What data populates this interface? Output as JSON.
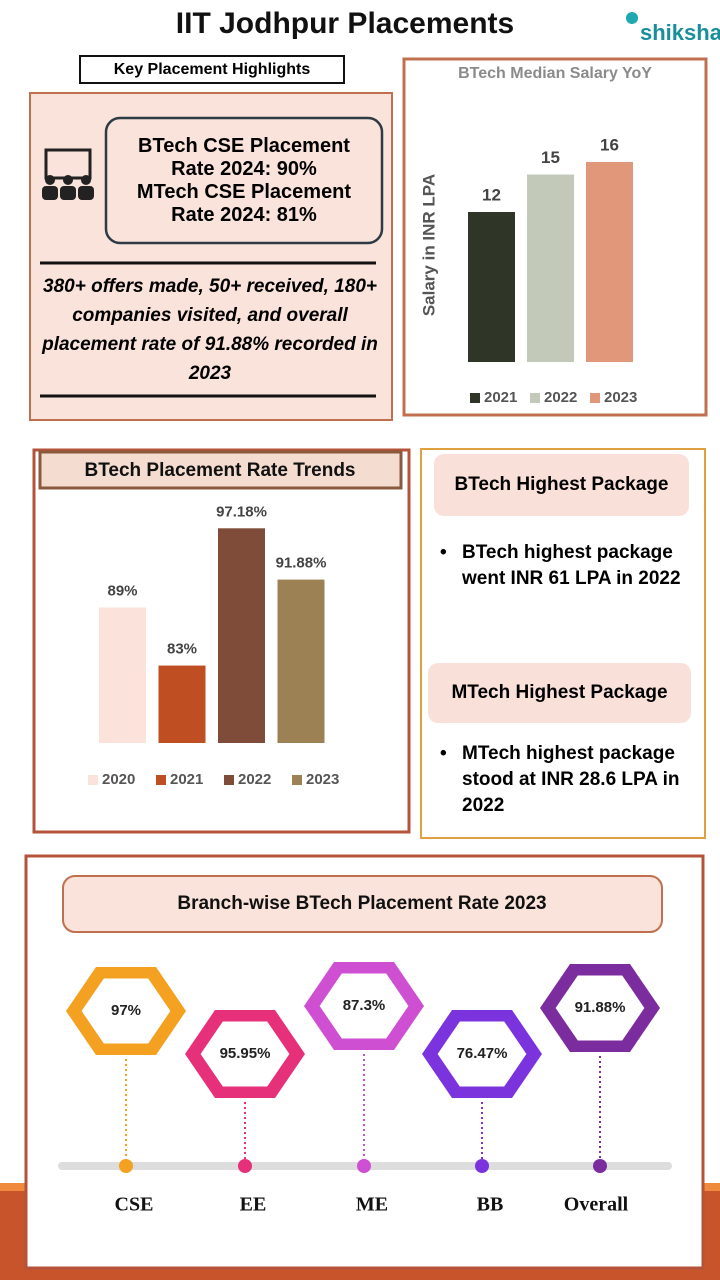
{
  "header": {
    "title": "IIT Jodhpur Placements",
    "logo": "shiksha"
  },
  "highlights": {
    "label": "Key Placement Highlights",
    "rates": [
      "BTech CSE Placement Rate 2024: 90%",
      "MTech CSE Placement Rate 2024: 81%"
    ],
    "summary": "380+ offers made, 50+ received, 180+ companies visited, and overall placement rate of 91.88% recorded in 2023"
  },
  "packages": [
    {
      "heading": "BTech Highest Package",
      "text": "BTech highest package went INR 61 LPA in 2022"
    },
    {
      "heading": "MTech Highest Package",
      "text": "MTech highest package stood at INR 28.6 LPA in 2022"
    }
  ],
  "chart_data": [
    {
      "type": "bar",
      "title": "BTech Median Salary YoY",
      "y_label": "Salary in INR LPA",
      "categories": [
        "2021",
        "2022",
        "2023"
      ],
      "values": [
        12,
        15,
        16
      ],
      "colors": [
        "#2f3527",
        "#c3c9b8",
        "#e0977a"
      ],
      "ylim": [
        0,
        18
      ],
      "legend": "bottom"
    },
    {
      "type": "bar",
      "title": "BTech Placement Rate Trends",
      "categories": [
        "2020",
        "2021",
        "2022",
        "2023"
      ],
      "values": [
        89,
        83,
        97.18,
        91.88
      ],
      "value_labels": [
        "89%",
        "83%",
        "97.18%",
        "91.88%"
      ],
      "colors": [
        "#fbe3dc",
        "#bf4f23",
        "#7e4c38",
        "#9b8153"
      ],
      "ylim": [
        75,
        100
      ],
      "legend": "bottom"
    },
    {
      "type": "hexagon",
      "title": "Branch-wise BTech Placement Rate 2023",
      "categories": [
        "CSE",
        "EE",
        "ME",
        "BB",
        "Overall"
      ],
      "values": [
        97,
        95.95,
        87.3,
        76.47,
        91.88
      ],
      "value_labels": [
        "97%",
        "95.95%",
        "87.3%",
        "76.47%",
        "91.88%"
      ],
      "colors": [
        "#f4a020",
        "#e6307a",
        "#cf4fd3",
        "#7a33dd",
        "#7b2c9e"
      ]
    }
  ]
}
